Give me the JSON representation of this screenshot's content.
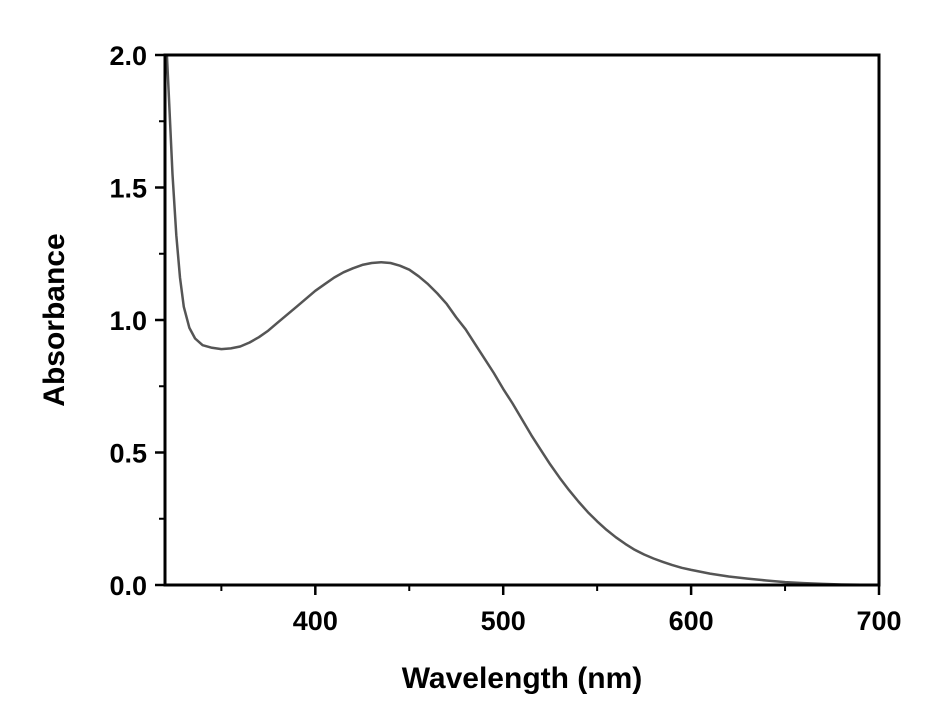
{
  "chart_data": {
    "type": "line",
    "title": "",
    "xlabel": "Wavelength (nm)",
    "ylabel": "Absorbance",
    "xlim": [
      320,
      700
    ],
    "ylim": [
      0.0,
      2.0
    ],
    "x_ticks": [
      400,
      500,
      600,
      700
    ],
    "x_tick_labels": [
      "400",
      "500",
      "600",
      "700"
    ],
    "x_minor_ticks": [
      350,
      450,
      550,
      650
    ],
    "y_ticks": [
      0.0,
      0.5,
      1.0,
      1.5,
      2.0
    ],
    "y_tick_labels": [
      "0.0",
      "0.5",
      "1.0",
      "1.5",
      "2.0"
    ],
    "y_minor_ticks": [
      0.25,
      0.75,
      1.25,
      1.75
    ],
    "grid": false,
    "legend": "none",
    "line_color": "#555555",
    "series": [
      {
        "x": [
          321,
          322,
          324,
          326,
          328,
          330,
          333,
          336,
          340,
          345,
          350,
          355,
          360,
          365,
          370,
          375,
          380,
          385,
          390,
          395,
          400,
          405,
          410,
          415,
          420,
          425,
          430,
          435,
          440,
          445,
          450,
          455,
          460,
          465,
          470,
          475,
          480,
          485,
          490,
          495,
          500,
          505,
          510,
          515,
          520,
          525,
          530,
          535,
          540,
          545,
          550,
          555,
          560,
          565,
          570,
          575,
          580,
          585,
          590,
          595,
          600,
          610,
          620,
          630,
          640,
          650,
          660,
          670,
          680,
          690,
          700
        ],
        "y": [
          2.0,
          1.85,
          1.55,
          1.32,
          1.16,
          1.05,
          0.97,
          0.93,
          0.905,
          0.895,
          0.89,
          0.893,
          0.9,
          0.915,
          0.935,
          0.96,
          0.99,
          1.02,
          1.05,
          1.08,
          1.11,
          1.135,
          1.16,
          1.18,
          1.195,
          1.208,
          1.215,
          1.218,
          1.215,
          1.205,
          1.19,
          1.165,
          1.135,
          1.1,
          1.06,
          1.01,
          0.965,
          0.91,
          0.855,
          0.8,
          0.74,
          0.685,
          0.625,
          0.565,
          0.51,
          0.455,
          0.405,
          0.358,
          0.315,
          0.275,
          0.24,
          0.208,
          0.18,
          0.155,
          0.133,
          0.115,
          0.1,
          0.087,
          0.075,
          0.065,
          0.057,
          0.043,
          0.032,
          0.024,
          0.017,
          0.011,
          0.007,
          0.004,
          0.002,
          0.001,
          0.0
        ]
      }
    ]
  }
}
